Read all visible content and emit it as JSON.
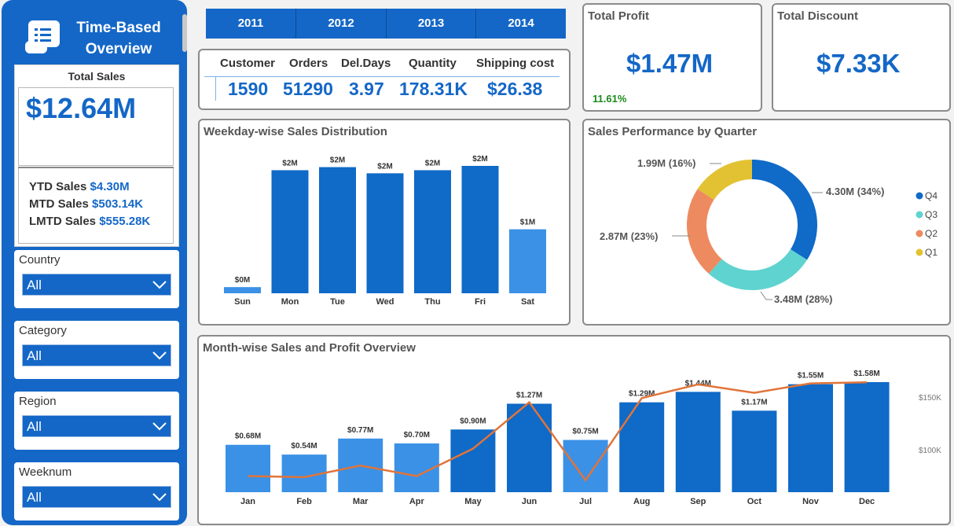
{
  "sidebar": {
    "title_line1": "Time-Based",
    "title_line2": "Overview",
    "logo_icon": "report-document-icon",
    "total_sales": {
      "label": "Total Sales",
      "value": "$12.64M",
      "ytd_label": "YTD Sales",
      "ytd_value": "$4.30M",
      "mtd_label": "MTD Sales",
      "mtd_value": "$503.14K",
      "lmtd_label": "LMTD Sales",
      "lmtd_value": "$555.28K"
    },
    "filters": [
      {
        "label": "Country",
        "value": "All"
      },
      {
        "label": "Category",
        "value": "All"
      },
      {
        "label": "Region",
        "value": "All"
      },
      {
        "label": "Weeknum",
        "value": "All"
      }
    ]
  },
  "years": [
    "2011",
    "2012",
    "2013",
    "2014"
  ],
  "kpis": {
    "headers": [
      "Customer",
      "Orders",
      "Del.Days",
      "Quantity",
      "Shipping cost"
    ],
    "values": [
      "1590",
      "51290",
      "3.97",
      "178.31K",
      "$26.38"
    ]
  },
  "total_profit": {
    "label": "Total Profit",
    "value": "$1.47M",
    "change": "11.61%"
  },
  "total_discount": {
    "label": "Total Discount",
    "value": "$7.33K"
  },
  "colors": {
    "accent": "#1467c7",
    "bar_dark": "#0f6ac8",
    "bar_light": "#3b91e6",
    "line": "#e0743a",
    "positive": "#1a8a1a"
  },
  "chart_data": [
    {
      "type": "bar",
      "title": "Weekday-wise Sales Distribution",
      "categories": [
        "Sun",
        "Mon",
        "Tue",
        "Wed",
        "Thu",
        "Fri",
        "Sat"
      ],
      "values": [
        0.1,
        2.0,
        2.05,
        1.95,
        2.0,
        2.07,
        1.04
      ],
      "data_labels": [
        "$0M",
        "$2M",
        "$2M",
        "$2M",
        "$2M",
        "$2M",
        "$1M"
      ],
      "unit": "$M"
    },
    {
      "type": "pie",
      "title": "Sales Performance by Quarter",
      "donut": true,
      "categories": [
        "Q4",
        "Q3",
        "Q2",
        "Q1"
      ],
      "values": [
        4.3,
        3.48,
        2.87,
        1.99
      ],
      "percents": [
        34,
        28,
        23,
        16
      ],
      "data_labels": [
        "4.30M (34%)",
        "3.48M (28%)",
        "2.87M (23%)",
        "1.99M (16%)"
      ],
      "colors": [
        "#0f6ac8",
        "#5fd3cf",
        "#ee8a60",
        "#e2c232"
      ],
      "legend": "right"
    },
    {
      "type": "bar",
      "title": "Month-wise Sales and Profit Overview",
      "categories": [
        "Jan",
        "Feb",
        "Mar",
        "Apr",
        "May",
        "Jun",
        "Jul",
        "Aug",
        "Sep",
        "Oct",
        "Nov",
        "Dec"
      ],
      "series": [
        {
          "type": "bar",
          "values": [
            0.68,
            0.54,
            0.77,
            0.7,
            0.9,
            1.27,
            0.75,
            1.29,
            1.44,
            1.17,
            1.55,
            1.58
          ],
          "data_labels": [
            "$0.68M",
            "$0.54M",
            "$0.77M",
            "$0.70M",
            "$0.90M",
            "$1.27M",
            "$0.75M",
            "$1.29M",
            "$1.44M",
            "$1.17M",
            "$1.55M",
            "$1.58M"
          ]
        },
        {
          "type": "line",
          "values": [
            75,
            74,
            85,
            75,
            101,
            145,
            71,
            149,
            162,
            154,
            163,
            164
          ]
        }
      ],
      "y2_ticks": [
        "$100K",
        "$150K"
      ],
      "y2_tick_values": [
        100,
        150
      ]
    }
  ]
}
